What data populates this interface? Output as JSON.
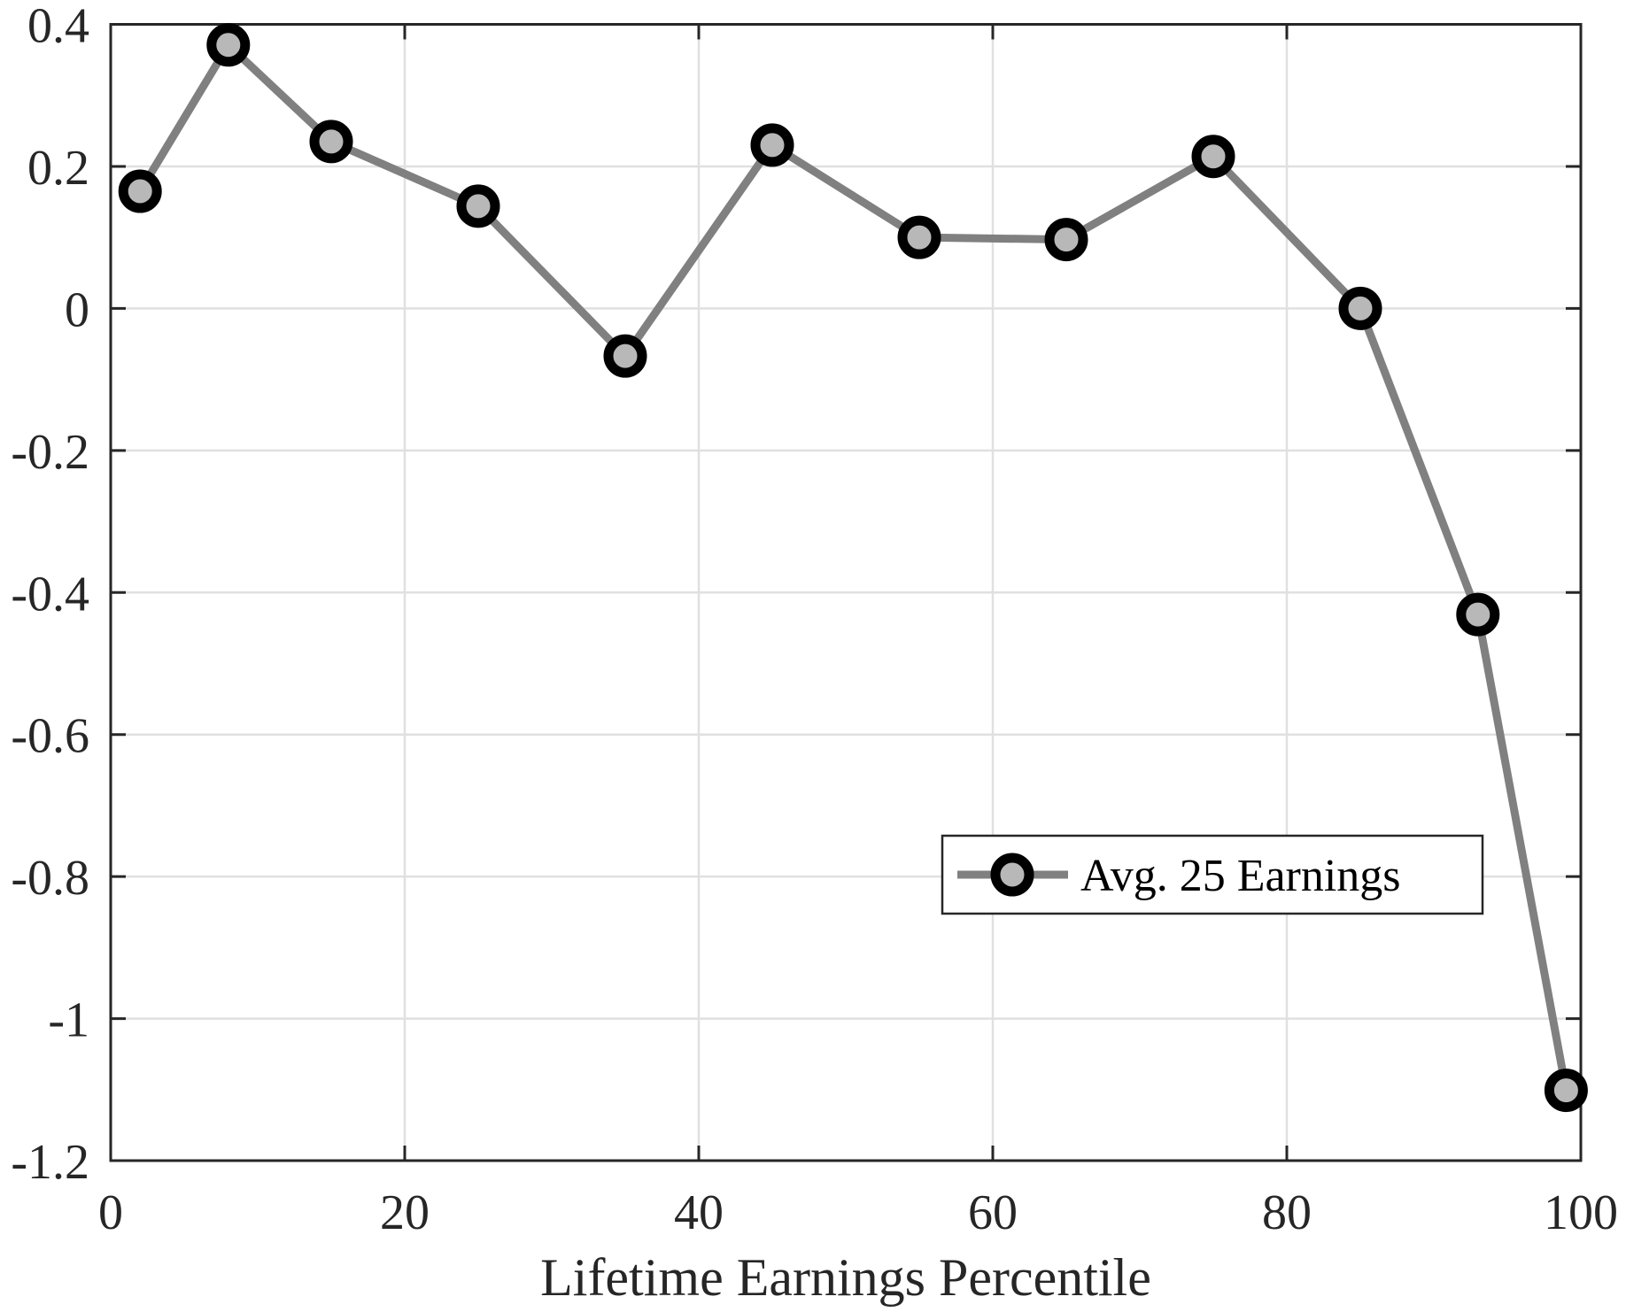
{
  "chart_data": {
    "type": "line",
    "title": "",
    "xlabel": "Lifetime Earnings Percentile",
    "ylabel": "",
    "xlim": [
      0,
      100
    ],
    "ylim": [
      -1.2,
      0.4
    ],
    "xticks": [
      0,
      20,
      40,
      60,
      80,
      100
    ],
    "xtick_labels": [
      "0",
      "20",
      "40",
      "60",
      "80",
      "100"
    ],
    "yticks": [
      0.4,
      0.2,
      0,
      -0.2,
      -0.4,
      -0.6,
      -0.8,
      -1,
      -1.2
    ],
    "ytick_labels": [
      "0.4",
      "0.2",
      "0",
      "-0.2",
      "-0.4",
      "-0.6",
      "-0.8",
      "-1",
      "-1.2"
    ],
    "grid": true,
    "legend_position": "lower right (inside)",
    "series": [
      {
        "name": "Avg. 25 Earnings",
        "line_color": "#808080",
        "marker": "circle",
        "marker_face": "#b8b8b8",
        "marker_edge": "#000000",
        "x": [
          2,
          8,
          15,
          25,
          35,
          45,
          55,
          65,
          75,
          85,
          93,
          99
        ],
        "values": [
          0.165,
          0.371,
          0.235,
          0.144,
          -0.067,
          0.23,
          0.1,
          0.097,
          0.214,
          0.0,
          -0.431,
          -1.101
        ]
      }
    ]
  },
  "legend": {
    "label": "Avg. 25 Earnings"
  },
  "colors": {
    "axis": "#262626",
    "grid": "#e0e0e0",
    "line": "#808080",
    "marker_face": "#b8b8b8",
    "marker_edge": "#000000"
  }
}
